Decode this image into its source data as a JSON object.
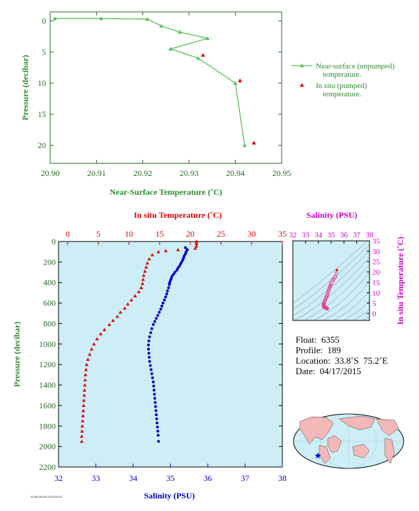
{
  "colors": {
    "green": "#2e8b2e",
    "line_green": "#5cbf5c",
    "red": "#dd0000",
    "blue": "#0000cc",
    "magenta": "#cc00cc",
    "axis_green": "#2a6a2a",
    "panel_bg": "#cdeef7"
  },
  "chart_data": [
    {
      "id": "near_surface",
      "type": "line",
      "xlabel": "Near-Surface Temperature (˚C)",
      "ylabel": "Pressure (decibar)",
      "xlim": [
        20.9,
        20.95
      ],
      "ylim": [
        0,
        22
      ],
      "y_inverted": true,
      "xticks": [
        "20.90",
        "20.91",
        "20.92",
        "20.93",
        "20.94",
        "20.95"
      ],
      "yticks": [
        "0",
        "5",
        "10",
        "15",
        "20"
      ],
      "legend_position": "right",
      "series": [
        {
          "name": "Near-surface (unpumped) temperature.",
          "marker": "triangle",
          "points": [
            [
              20.901,
              -0.4
            ],
            [
              20.911,
              -0.4
            ],
            [
              20.921,
              -0.3
            ],
            [
              20.924,
              0.8
            ],
            [
              20.928,
              1.8
            ],
            [
              20.934,
              2.8
            ],
            [
              20.926,
              4.5
            ],
            [
              20.932,
              6.0
            ],
            [
              20.94,
              10.0
            ],
            [
              20.942,
              20.0
            ]
          ]
        },
        {
          "name": "In situ (pumped) temperature.",
          "marker": "triangle",
          "points": [
            [
              20.933,
              5.5
            ],
            [
              20.941,
              9.6
            ],
            [
              20.944,
              19.6
            ]
          ]
        }
      ]
    },
    {
      "id": "profile",
      "type": "scatter",
      "ylabel": "Pressure (decibar)",
      "xlabel_top": "In situ Temperature (˚C)",
      "xlabel_bottom": "Salinity (PSU)",
      "ylim": [
        0,
        2200
      ],
      "y_inverted": true,
      "temp_xlim": [
        0,
        35
      ],
      "sal_xlim": [
        32,
        38
      ],
      "yticks": [
        "0",
        "200",
        "400",
        "600",
        "800",
        "1000",
        "1200",
        "1400",
        "1600",
        "1800",
        "2000",
        "2200"
      ],
      "temp_ticks": [
        "0",
        "5",
        "10",
        "15",
        "20",
        "25",
        "30",
        "35"
      ],
      "sal_ticks": [
        "32",
        "33",
        "34",
        "35",
        "36",
        "37",
        "38"
      ],
      "series": [
        {
          "name": "temperature",
          "marker": "triangle",
          "points": [
            [
              21.0,
              0
            ],
            [
              21.0,
              20
            ],
            [
              21.0,
              45
            ],
            [
              20.8,
              65
            ],
            [
              19.5,
              75
            ],
            [
              18.0,
              80
            ],
            [
              16.0,
              90
            ],
            [
              14.8,
              100
            ],
            [
              13.8,
              130
            ],
            [
              13.3,
              170
            ],
            [
              13.0,
              210
            ],
            [
              12.8,
              250
            ],
            [
              12.6,
              290
            ],
            [
              12.4,
              330
            ],
            [
              12.3,
              370
            ],
            [
              12.2,
              410
            ],
            [
              12.0,
              450
            ],
            [
              11.6,
              490
            ],
            [
              11.0,
              530
            ],
            [
              10.4,
              570
            ],
            [
              9.8,
              610
            ],
            [
              9.3,
              650
            ],
            [
              8.6,
              690
            ],
            [
              8.1,
              730
            ],
            [
              7.4,
              770
            ],
            [
              6.8,
              810
            ],
            [
              6.0,
              860
            ],
            [
              5.4,
              900
            ],
            [
              4.8,
              950
            ],
            [
              4.3,
              1000
            ],
            [
              3.9,
              1050
            ],
            [
              3.6,
              1100
            ],
            [
              3.3,
              1150
            ],
            [
              3.1,
              1200
            ],
            [
              3.0,
              1250
            ],
            [
              2.9,
              1300
            ],
            [
              2.85,
              1350
            ],
            [
              2.8,
              1400
            ],
            [
              2.75,
              1450
            ],
            [
              2.7,
              1500
            ],
            [
              2.65,
              1550
            ],
            [
              2.6,
              1600
            ],
            [
              2.55,
              1650
            ],
            [
              2.5,
              1700
            ],
            [
              2.45,
              1750
            ],
            [
              2.4,
              1800
            ],
            [
              2.35,
              1850
            ],
            [
              2.3,
              1900
            ],
            [
              2.3,
              1950
            ]
          ]
        },
        {
          "name": "salinity",
          "marker": "dot",
          "points": [
            [
              35.4,
              60
            ],
            [
              35.45,
              80
            ],
            [
              35.42,
              100
            ],
            [
              35.4,
              120
            ],
            [
              35.37,
              140
            ],
            [
              35.35,
              160
            ],
            [
              35.33,
              180
            ],
            [
              35.3,
              200
            ],
            [
              35.27,
              220
            ],
            [
              35.24,
              240
            ],
            [
              35.2,
              260
            ],
            [
              35.17,
              280
            ],
            [
              35.12,
              300
            ],
            [
              35.08,
              320
            ],
            [
              35.04,
              340
            ],
            [
              35.02,
              360
            ],
            [
              35.0,
              380
            ],
            [
              34.98,
              400
            ],
            [
              34.97,
              420
            ],
            [
              34.95,
              450
            ],
            [
              34.92,
              480
            ],
            [
              34.9,
              510
            ],
            [
              34.87,
              540
            ],
            [
              34.84,
              570
            ],
            [
              34.8,
              600
            ],
            [
              34.77,
              630
            ],
            [
              34.74,
              660
            ],
            [
              34.7,
              690
            ],
            [
              34.66,
              720
            ],
            [
              34.62,
              750
            ],
            [
              34.58,
              780
            ],
            [
              34.54,
              810
            ],
            [
              34.5,
              850
            ],
            [
              34.47,
              890
            ],
            [
              34.44,
              930
            ],
            [
              34.42,
              970
            ],
            [
              34.41,
              1010
            ],
            [
              34.41,
              1050
            ],
            [
              34.42,
              1090
            ],
            [
              34.43,
              1130
            ],
            [
              34.44,
              1170
            ],
            [
              34.46,
              1210
            ],
            [
              34.48,
              1250
            ],
            [
              34.5,
              1290
            ],
            [
              34.52,
              1330
            ],
            [
              34.54,
              1370
            ],
            [
              34.55,
              1410
            ],
            [
              34.56,
              1450
            ],
            [
              34.57,
              1490
            ],
            [
              34.58,
              1530
            ],
            [
              34.59,
              1570
            ],
            [
              34.6,
              1610
            ],
            [
              34.61,
              1650
            ],
            [
              34.62,
              1690
            ],
            [
              34.63,
              1730
            ],
            [
              34.64,
              1770
            ],
            [
              34.65,
              1810
            ],
            [
              34.66,
              1850
            ],
            [
              34.67,
              1890
            ],
            [
              34.68,
              1950
            ]
          ]
        }
      ]
    },
    {
      "id": "ts_diagram",
      "type": "scatter",
      "xlabel": "Salinity (PSU)",
      "ylabel": "In situ Temperature (˚C)",
      "xlim": [
        32,
        38
      ],
      "ylim": [
        0,
        35
      ],
      "xticks": [
        "32",
        "33",
        "34",
        "35",
        "36",
        "37",
        "38"
      ],
      "yticks": [
        "0",
        "5",
        "10",
        "15",
        "20",
        "25",
        "30",
        "35"
      ],
      "points": [
        [
          35.45,
          21.0
        ],
        [
          35.4,
          19.0
        ],
        [
          35.3,
          17.5
        ],
        [
          35.2,
          16.5
        ],
        [
          35.1,
          15.8
        ],
        [
          35.0,
          14.5
        ],
        [
          34.95,
          13.5
        ],
        [
          34.9,
          12.8
        ],
        [
          34.85,
          12.0
        ],
        [
          34.8,
          11.0
        ],
        [
          34.75,
          10.0
        ],
        [
          34.7,
          9.0
        ],
        [
          34.65,
          8.2
        ],
        [
          34.6,
          7.5
        ],
        [
          34.55,
          6.8
        ],
        [
          34.5,
          6.0
        ],
        [
          34.47,
          5.4
        ],
        [
          34.44,
          4.8
        ],
        [
          34.42,
          4.3
        ],
        [
          34.41,
          3.9
        ],
        [
          34.42,
          3.6
        ],
        [
          34.44,
          3.3
        ],
        [
          34.47,
          3.1
        ],
        [
          34.5,
          2.95
        ],
        [
          34.54,
          2.85
        ],
        [
          34.57,
          2.75
        ],
        [
          34.6,
          2.65
        ],
        [
          34.63,
          2.55
        ],
        [
          34.66,
          2.45
        ],
        [
          34.68,
          2.35
        ]
      ]
    }
  ],
  "info": {
    "float": "Float:  6355",
    "profile": "Profile:  189",
    "location": "Location:  33.8˚S  75.2˚E",
    "date": "Date:  04/17/2015"
  },
  "credit": "AOML/NOAA 2015/04/18"
}
